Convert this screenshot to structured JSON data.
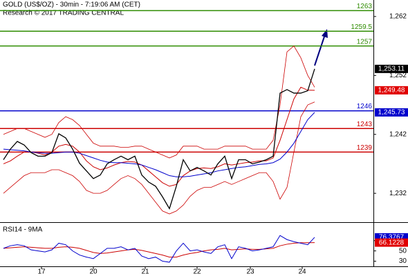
{
  "chart_data": [
    {
      "type": "line",
      "title": "GOLD (US$/OZ) - 30min - 7:19:06 AM (CET)",
      "subtitle": "Research © 2017 TRADING CENTRAL",
      "x": [
        0,
        1,
        2,
        3,
        4,
        5,
        6,
        7,
        8,
        9,
        10,
        11,
        12,
        13,
        14,
        15,
        16,
        17,
        18,
        19,
        20,
        21,
        22,
        23,
        24,
        25,
        26,
        27,
        28,
        29,
        30,
        31,
        32,
        33,
        34,
        35,
        36,
        37,
        38,
        39,
        40,
        41,
        42,
        43,
        44,
        45
      ],
      "xlim": [
        -0.5,
        53.5
      ],
      "ylim": [
        1227.1,
        1264.8
      ],
      "yticks": [
        {
          "value": 1262,
          "label": "1,262"
        },
        {
          "value": 1252,
          "label": "1,252"
        },
        {
          "value": 1242,
          "label": "1,242"
        },
        {
          "value": 1232,
          "label": "1,232"
        }
      ],
      "series": [
        {
          "color": "#cc0000",
          "width": 0.8,
          "values": [
            1242,
            1242.5,
            1243,
            1243,
            1242.5,
            1242,
            1241.5,
            1242,
            1244,
            1245,
            1244.5,
            1243.5,
            1242,
            1240.5,
            1240,
            1240,
            1240,
            1239.8,
            1239.8,
            1240,
            1240,
            1239.5,
            1239,
            1238.5,
            1238,
            1238.5,
            1240,
            1240,
            1240,
            1239.5,
            1239.5,
            1239.5,
            1240,
            1240,
            1240,
            1240,
            1239.5,
            1239.5,
            1239.5,
            1241,
            1247,
            1256,
            1257,
            1255,
            1252,
            1250
          ]
        },
        {
          "color": "#cc0000",
          "width": 0.8,
          "values": [
            1232,
            1233,
            1234,
            1235,
            1235.5,
            1235.5,
            1235.5,
            1236,
            1236,
            1235.5,
            1235,
            1234,
            1232.5,
            1232,
            1232,
            1232.5,
            1233.5,
            1234.5,
            1235,
            1234.5,
            1233.5,
            1232,
            1230.5,
            1229,
            1228.5,
            1229,
            1230,
            1231.5,
            1232.5,
            1233,
            1233,
            1233.5,
            1234,
            1233.5,
            1234,
            1234.5,
            1235,
            1235.5,
            1235.5,
            1234,
            1231,
            1233,
            1239,
            1245,
            1247,
            1247.5
          ]
        },
        {
          "color": "#cc0000",
          "width": 1,
          "values": [
            1237,
            1237.5,
            1238.3,
            1239,
            1239,
            1238.8,
            1238.5,
            1239,
            1240,
            1240.3,
            1240,
            1239,
            1237.5,
            1236.5,
            1236,
            1236.3,
            1236.8,
            1237.2,
            1237.4,
            1237.3,
            1236.8,
            1235.8,
            1234.8,
            1233.8,
            1233.2,
            1233.5,
            1235,
            1235.8,
            1236.2,
            1236.3,
            1236.2,
            1236.5,
            1237,
            1236.8,
            1237,
            1237.2,
            1237.3,
            1237.5,
            1237.5,
            1238,
            1241,
            1244.5,
            1248,
            1250,
            1249.5,
            1249.48
          ]
        },
        {
          "color": "#0000cc",
          "width": 1,
          "values": [
            1239.5,
            1239.4,
            1239.3,
            1239.2,
            1239,
            1238.9,
            1238.8,
            1238.8,
            1238.9,
            1239,
            1239,
            1238.8,
            1238.4,
            1238,
            1237.6,
            1237.3,
            1237.2,
            1237.2,
            1237.1,
            1237,
            1236.8,
            1236.4,
            1236,
            1235.5,
            1235,
            1234.8,
            1234.8,
            1234.9,
            1235.1,
            1235.3,
            1235.5,
            1235.8,
            1236,
            1236.2,
            1236.4,
            1236.5,
            1236.7,
            1236.9,
            1237,
            1237.2,
            1237.8,
            1239,
            1240.5,
            1242.5,
            1244.5,
            1245.73
          ]
        },
        {
          "color": "#000000",
          "width": 1.3,
          "values": [
            1237.7,
            1239.5,
            1240.8,
            1240.2,
            1238.9,
            1238.3,
            1238.3,
            1238.9,
            1242.1,
            1241.4,
            1239.5,
            1237.1,
            1235.8,
            1234.5,
            1235.1,
            1237,
            1237.7,
            1238.3,
            1237.7,
            1238.3,
            1235.1,
            1233.9,
            1233.2,
            1231.4,
            1229.4,
            1233.2,
            1237.7,
            1235.8,
            1236.4,
            1235.8,
            1235.1,
            1237,
            1238.3,
            1234.5,
            1237.7,
            1237.7,
            1237,
            1237.3,
            1237.7,
            1238.3,
            1249,
            1249.6,
            1249,
            1249,
            1249.4,
            1253.11
          ]
        }
      ],
      "levels": [
        {
          "value": 1263,
          "color": "#2e8b00"
        },
        {
          "value": 1259.5,
          "color": "#2e8b00"
        },
        {
          "value": 1257,
          "color": "#2e8b00"
        },
        {
          "value": 1246,
          "color": "#0000cc"
        },
        {
          "value": 1243,
          "color": "#cc0000"
        },
        {
          "value": 1239,
          "color": "#cc0000"
        }
      ],
      "price_labels": [
        {
          "value": 1253.11,
          "label": "1,253.11",
          "color": "#000000"
        },
        {
          "value": 1249.48,
          "label": "1,249.48",
          "color": "#e00000"
        },
        {
          "value": 1245.73,
          "label": "1,245.73",
          "color": "#0000cc"
        }
      ]
    },
    {
      "type": "line",
      "title": "RSI14 - 9MA",
      "x": [
        0,
        1,
        2,
        3,
        4,
        5,
        6,
        7,
        8,
        9,
        10,
        11,
        12,
        13,
        14,
        15,
        16,
        17,
        18,
        19,
        20,
        21,
        22,
        23,
        24,
        25,
        26,
        27,
        28,
        29,
        30,
        31,
        32,
        33,
        34,
        35,
        36,
        37,
        38,
        39,
        40,
        41,
        42,
        43,
        44,
        45
      ],
      "xlim": [
        -0.5,
        53.5
      ],
      "xticks": [
        {
          "value": 5.5,
          "label": "17"
        },
        {
          "value": 13,
          "label": "20"
        },
        {
          "value": 20.5,
          "label": "21"
        },
        {
          "value": 28,
          "label": "22"
        },
        {
          "value": 35.7,
          "label": "23"
        },
        {
          "value": 43.2,
          "label": "24"
        }
      ],
      "ylim": [
        20,
        104.5
      ],
      "yticks": [
        30,
        50,
        70
      ],
      "series": [
        {
          "color": "#cc0000",
          "width": 1,
          "values": [
            55,
            56,
            57,
            58,
            57,
            56,
            55,
            55,
            57,
            58,
            57,
            55,
            51,
            47,
            45,
            46,
            48,
            50,
            52,
            53,
            51,
            48,
            45,
            42,
            38,
            38,
            42,
            45,
            47,
            50,
            52,
            53,
            55,
            52,
            53,
            54,
            53,
            53,
            54,
            55,
            60,
            63,
            65,
            66,
            66,
            66.1228
          ]
        },
        {
          "color": "#0000cc",
          "width": 1,
          "values": [
            55,
            60,
            62,
            60,
            52,
            50,
            48,
            52,
            65,
            62,
            50,
            42,
            38,
            35,
            45,
            55,
            55,
            58,
            52,
            55,
            40,
            35,
            38,
            30,
            28,
            50,
            65,
            50,
            52,
            48,
            45,
            58,
            62,
            35,
            58,
            55,
            50,
            52,
            55,
            58,
            80,
            72,
            68,
            65,
            62,
            76.3767
          ]
        }
      ],
      "price_labels": [
        {
          "value": 76.3767,
          "label": "76.3767",
          "color": "#0000cc"
        },
        {
          "value": 66.1228,
          "label": "66.1228",
          "color": "#e00000"
        }
      ]
    }
  ]
}
